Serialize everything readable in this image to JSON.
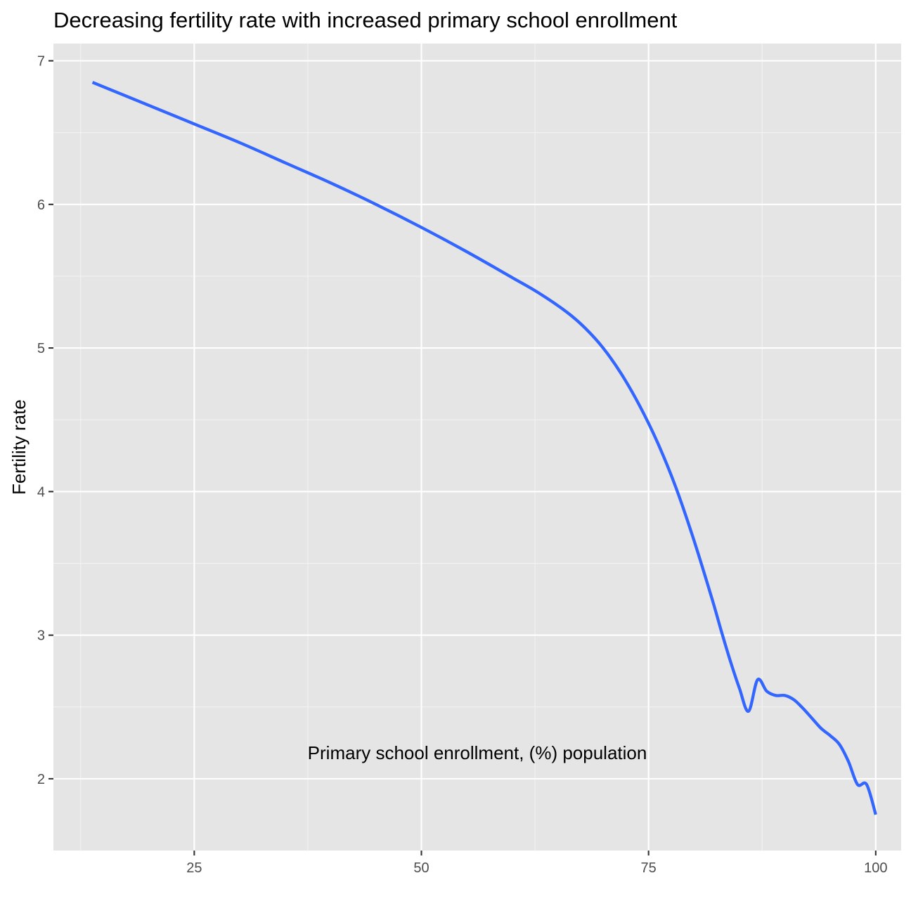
{
  "chart_data": {
    "type": "line",
    "title": "Decreasing fertility rate with increased primary school enrollment",
    "xlabel": "Primary school enrollment, (%) population",
    "ylabel": "Fertility rate",
    "xlim": [
      9.5,
      102.8
    ],
    "ylim": [
      1.5,
      7.12
    ],
    "x_ticks": [
      25,
      50,
      75,
      100
    ],
    "x_tick_labels": [
      "25",
      "50",
      "75",
      "100"
    ],
    "x_minor_ticks": [
      12.5,
      37.5,
      62.5,
      87.5
    ],
    "y_ticks": [
      2,
      3,
      4,
      5,
      6,
      7
    ],
    "y_tick_labels": [
      "2",
      "3",
      "4",
      "5",
      "6",
      "7"
    ],
    "y_minor_ticks": [
      2.5,
      3.5,
      4.5,
      5.5,
      6.5
    ],
    "grid": true,
    "legend": "none",
    "series": [
      {
        "color": "#3366FF",
        "x": [
          13.8,
          20,
          25,
          30,
          35,
          40,
          45,
          50,
          55,
          60,
          63,
          66,
          68,
          70,
          72,
          74,
          76,
          78,
          80,
          82,
          83,
          84,
          85,
          86,
          87,
          88,
          89,
          90,
          91,
          92,
          93,
          94,
          95,
          96,
          97,
          98,
          99,
          100
        ],
        "y": [
          6.85,
          6.69,
          6.56,
          6.43,
          6.29,
          6.15,
          6.0,
          5.84,
          5.67,
          5.49,
          5.38,
          5.25,
          5.14,
          5.0,
          4.82,
          4.6,
          4.34,
          4.03,
          3.66,
          3.25,
          3.03,
          2.82,
          2.63,
          2.47,
          2.69,
          2.61,
          2.58,
          2.58,
          2.55,
          2.49,
          2.42,
          2.35,
          2.3,
          2.24,
          2.12,
          1.96,
          1.96,
          1.75
        ]
      }
    ],
    "colors": {
      "panel": "#E5E5E5",
      "grid_major": "#FFFFFF",
      "grid_minor": "#F2F2F2",
      "tick_mark": "#333333",
      "tick_label": "#4D4D4D"
    }
  }
}
